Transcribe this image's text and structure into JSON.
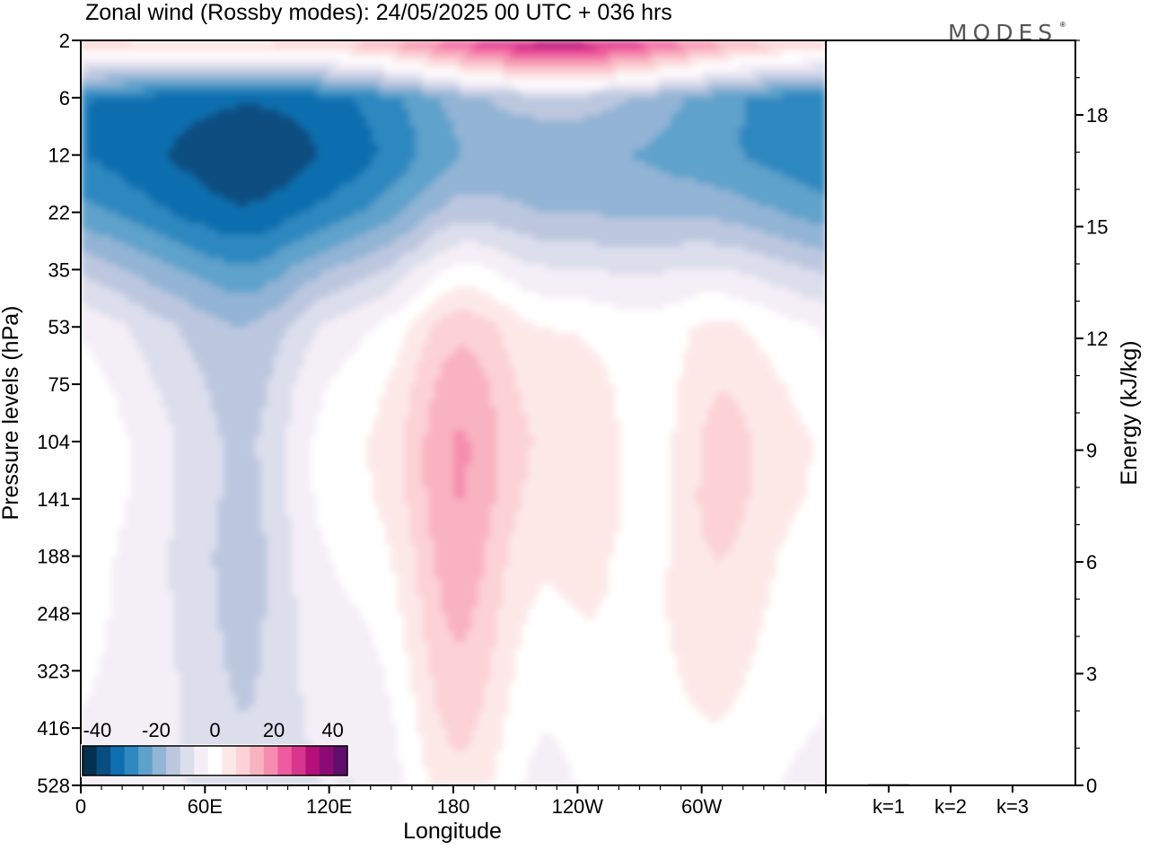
{
  "chart_data": {
    "type": "heatmap",
    "title": "Zonal wind (Rossby modes):  24/05/2025  00 UTC  + 036 hrs",
    "watermark": "MODES",
    "xlabel": "Longitude",
    "ylabel": "Pressure levels (hPa)",
    "x_tick_labels": [
      "0",
      "60E",
      "120E",
      "180",
      "120W",
      "60W"
    ],
    "x_tick_lons": [
      0,
      60,
      120,
      180,
      240,
      300
    ],
    "xlim": [
      0,
      360
    ],
    "y_levels": [
      2,
      6,
      12,
      22,
      35,
      53,
      75,
      104,
      141,
      188,
      248,
      323,
      416,
      528
    ],
    "y_tick_labels": [
      "2",
      "6",
      "12",
      "22",
      "35",
      "53",
      "75",
      "104",
      "141",
      "188",
      "248",
      "323",
      "416",
      "528"
    ],
    "colorbar": {
      "tick_labels": [
        "-40",
        "-20",
        "0",
        "20",
        "40"
      ],
      "range": [
        -45,
        45
      ],
      "step": 5,
      "colors": [
        "#05304e",
        "#0a4d80",
        "#0f6eaf",
        "#2f88c0",
        "#5ea2cb",
        "#92b4d5",
        "#bcc7df",
        "#dcdeec",
        "#f4eef6",
        "#ffffff",
        "#fde8e8",
        "#fcd2d6",
        "#f9b2bf",
        "#f68db0",
        "#ef5b9e",
        "#d8368d",
        "#b3107a",
        "#8c0a73",
        "#5f0e6b"
      ]
    },
    "zonal_mean": {
      "levels": [
        2,
        6,
        12,
        22,
        35,
        53,
        75,
        104,
        141,
        188,
        248,
        323,
        416,
        528
      ],
      "values": [
        12,
        -28,
        -25,
        -17,
        -6,
        3,
        5,
        6,
        5,
        3,
        2,
        1,
        0,
        -1
      ]
    },
    "anomalies": [
      {
        "lon": 55,
        "level": 20,
        "dlon": 55,
        "dlev": 0.9,
        "amp": -9
      },
      {
        "lon": 110,
        "level": 16,
        "dlon": 45,
        "dlev": 1.0,
        "amp": -6
      },
      {
        "lon": 225,
        "level": 9,
        "dlon": 60,
        "dlev": 1.0,
        "amp": -6
      },
      {
        "lon": 230,
        "level": 2.5,
        "dlon": 55,
        "dlev": 1.2,
        "amp": 28
      },
      {
        "lon": 80,
        "level": 140,
        "dlon": 20,
        "dlev": 1.2,
        "amp": -14
      },
      {
        "lon": 40,
        "level": 110,
        "dlon": 20,
        "dlev": 1.0,
        "amp": -6
      },
      {
        "lon": 185,
        "level": 110,
        "dlon": 20,
        "dlev": 1.4,
        "amp": 10
      },
      {
        "lon": 180,
        "level": 210,
        "dlon": 16,
        "dlev": 1.2,
        "amp": 6
      },
      {
        "lon": 305,
        "level": 150,
        "dlon": 20,
        "dlev": 1.0,
        "amp": 8
      },
      {
        "lon": 280,
        "level": 100,
        "dlon": 16,
        "dlev": 0.5,
        "amp": -6
      },
      {
        "lon": 240,
        "level": 200,
        "dlon": 18,
        "dlev": 1.0,
        "amp": 4
      },
      {
        "lon": 135,
        "level": 500,
        "dlon": 20,
        "dlev": 0.6,
        "amp": -4
      },
      {
        "lon": 225,
        "level": 480,
        "dlon": 14,
        "dlev": 0.7,
        "amp": -3
      }
    ],
    "energy_axis": {
      "label": "Energy (kJ/kg)",
      "tick_labels": [
        "0",
        "3",
        "6",
        "9",
        "12",
        "15",
        "18"
      ],
      "ylim": [
        0,
        20
      ]
    },
    "energy_bars": {
      "categories": [
        "k=1",
        "k=2",
        "k=3"
      ],
      "values": [
        0.03,
        0.02,
        0.02
      ]
    }
  }
}
